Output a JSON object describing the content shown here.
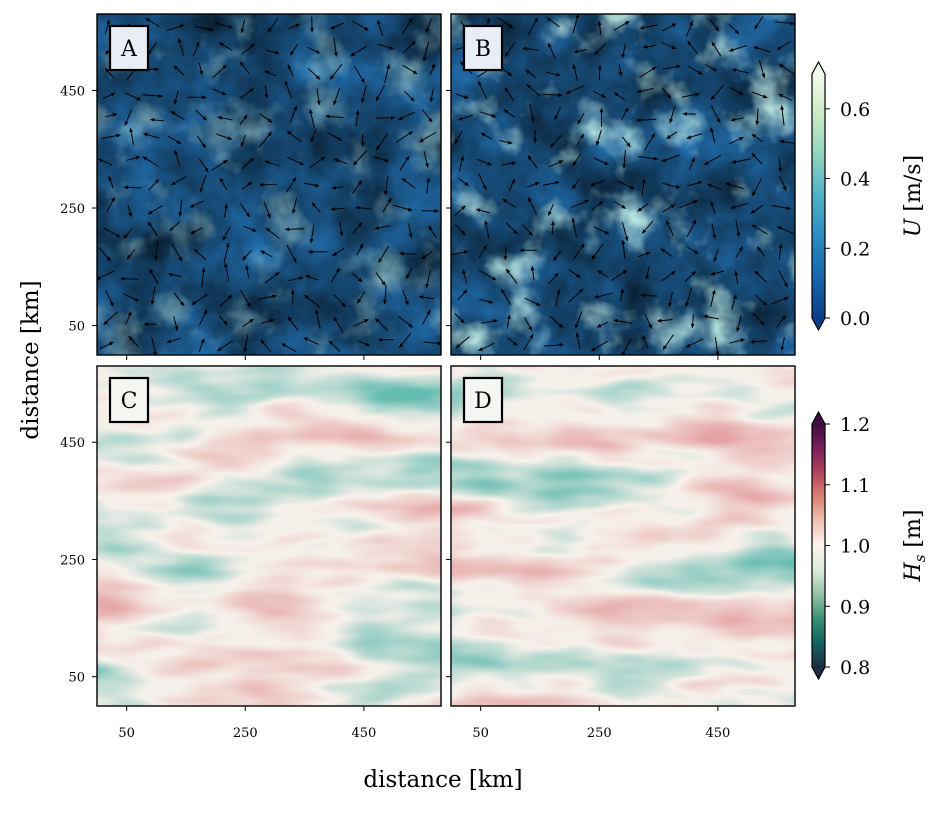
{
  "chart_data": [
    {
      "type": "heatmap",
      "panel_label": "A",
      "variable": "current speed U with direction arrows",
      "x_ticks": [
        50,
        250,
        450
      ],
      "y_ticks": [
        50,
        250,
        450
      ],
      "xlim": [
        0,
        580
      ],
      "ylim": [
        0,
        580
      ],
      "colorbar": "U"
    },
    {
      "type": "heatmap",
      "panel_label": "B",
      "variable": "current speed U with direction arrows",
      "x_ticks": [
        50,
        250,
        450
      ],
      "y_ticks": [
        50,
        250,
        450
      ],
      "xlim": [
        0,
        580
      ],
      "ylim": [
        0,
        580
      ],
      "colorbar": "U"
    },
    {
      "type": "heatmap",
      "panel_label": "C",
      "variable": "significant wave height Hs",
      "x_ticks": [
        50,
        250,
        450
      ],
      "y_ticks": [
        50,
        250,
        450
      ],
      "xlim": [
        0,
        580
      ],
      "ylim": [
        0,
        580
      ],
      "colorbar": "Hs"
    },
    {
      "type": "heatmap",
      "panel_label": "D",
      "variable": "significant wave height Hs",
      "x_ticks": [
        50,
        250,
        450
      ],
      "y_ticks": [
        50,
        250,
        450
      ],
      "xlim": [
        0,
        580
      ],
      "ylim": [
        0,
        580
      ],
      "colorbar": "Hs"
    }
  ],
  "axes": {
    "xlabel": "distance [km]",
    "ylabel": "distance [km]",
    "tick_labels": [
      "50",
      "250",
      "450"
    ]
  },
  "colorbars": {
    "U": {
      "label_main": "U",
      "label_unit": "[m/s]",
      "range": [
        0.0,
        0.7
      ],
      "ticks": [
        "0.0",
        "0.2",
        "0.4",
        "0.6"
      ],
      "tick_values": [
        0.0,
        0.2,
        0.4,
        0.6
      ],
      "extend": "both",
      "colormap": [
        "#0b3f85",
        "#1765ad",
        "#2b8bc0",
        "#4fb0c6",
        "#8fd3bf",
        "#c9ebc5",
        "#f3fae9"
      ]
    },
    "Hs": {
      "label_main": "H",
      "label_sub": "s",
      "label_unit": "[m]",
      "range": [
        0.8,
        1.2
      ],
      "ticks": [
        "0.8",
        "0.9",
        "1.0",
        "1.1",
        "1.2"
      ],
      "tick_values": [
        0.8,
        0.9,
        1.0,
        1.1,
        1.2
      ],
      "extend": "both",
      "colormap": [
        "#1c2e42",
        "#14635f",
        "#3a9076",
        "#93c3a4",
        "#dcebdc",
        "#fbf4ef",
        "#efc3b4",
        "#d98373",
        "#b3445a",
        "#7a1f5c",
        "#3e0f3f"
      ]
    }
  }
}
